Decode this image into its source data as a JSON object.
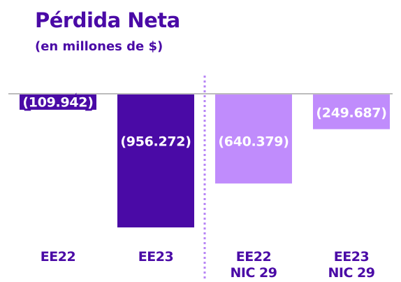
{
  "chart_data": {
    "type": "bar",
    "title": "Pérdida Neta",
    "subtitle": "(en millones de $)",
    "categories": [
      "EE22",
      "EE23",
      "EE22\nNIC 29",
      "EE23\nNIC 29"
    ],
    "values": [
      -109942,
      -956272,
      -640379,
      -249687
    ],
    "value_labels": [
      "(109.942)",
      "(956.272)",
      "(640.379)",
      "(249.687)"
    ],
    "colors": [
      "#4a0aa6",
      "#4a0aa6",
      "#c08cfc",
      "#c08cfc"
    ]
  }
}
